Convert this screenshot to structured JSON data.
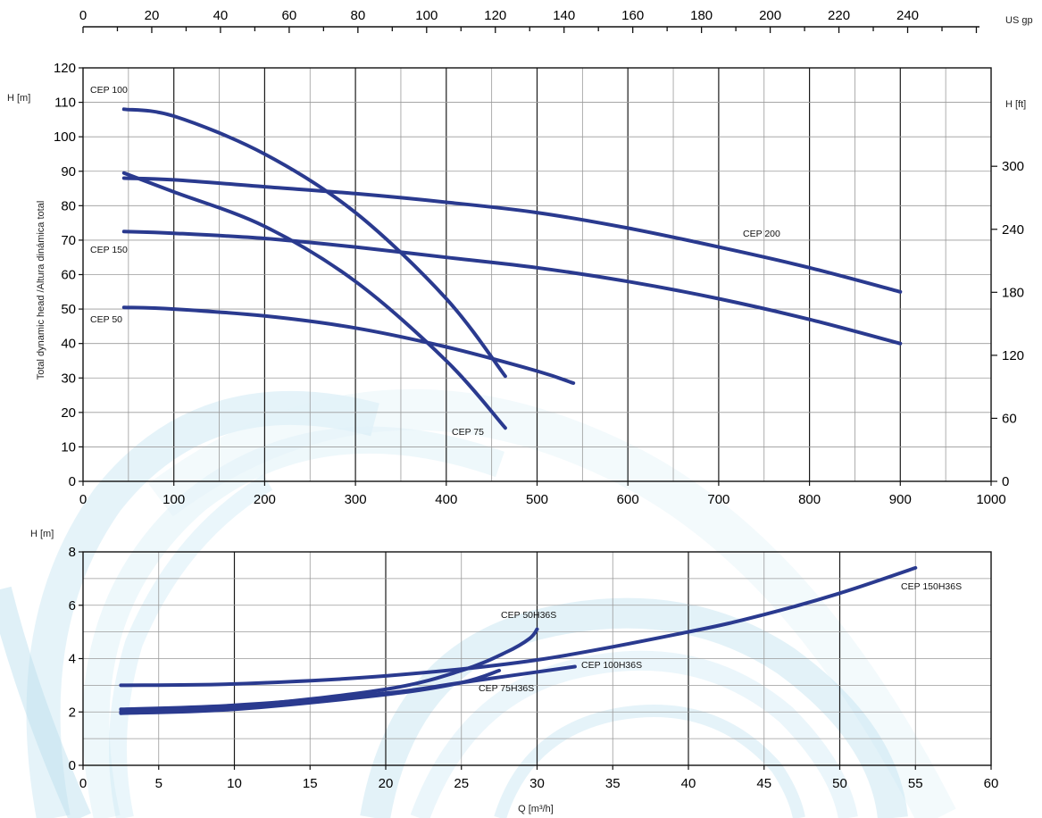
{
  "colors": {
    "curve": "#2a3a8f",
    "grid_major": "#1a1a1a",
    "grid_minor": "#9a9a9a",
    "watermark": "#5ab4d6"
  },
  "top_axis": {
    "ticks": [
      "0",
      "20",
      "40",
      "60",
      "80",
      "100",
      "120",
      "140",
      "160",
      "180",
      "200",
      "220",
      "240"
    ],
    "unit": "US gp"
  },
  "chart_data": [
    {
      "type": "line",
      "ylabel_left_unit": "H [m]",
      "ylabel_left": "Total dynamic head /Altura dinámica total",
      "ylabel_right_unit": "H [ft]",
      "xlim": [
        0,
        1000
      ],
      "ylim": [
        0,
        120
      ],
      "x_ticks": [
        "0",
        "100",
        "200",
        "300",
        "400",
        "500",
        "600",
        "700",
        "800",
        "900",
        "1000"
      ],
      "y_ticks": [
        "0",
        "10",
        "20",
        "30",
        "40",
        "50",
        "60",
        "70",
        "80",
        "90",
        "100",
        "110",
        "120"
      ],
      "y_right_ticks": [
        "0",
        "60",
        "120",
        "180",
        "240",
        "300"
      ],
      "grid": true,
      "series": [
        {
          "name": "CEP 100",
          "x": [
            45,
            100,
            200,
            300,
            400,
            465
          ],
          "y": [
            108,
            106,
            95,
            78,
            53,
            30.5
          ]
        },
        {
          "name": "CEP 75",
          "x": [
            45,
            100,
            200,
            300,
            400,
            465
          ],
          "y": [
            89.5,
            84,
            74,
            58,
            35,
            15.5
          ]
        },
        {
          "name": "CEP 200",
          "x": [
            45,
            100,
            200,
            300,
            400,
            500,
            600,
            700,
            800,
            900
          ],
          "y": [
            88,
            87.5,
            85.5,
            83.5,
            81,
            78,
            73.5,
            68,
            62,
            55
          ]
        },
        {
          "name": "CEP 150",
          "x": [
            45,
            100,
            200,
            300,
            400,
            500,
            600,
            700,
            800,
            900
          ],
          "y": [
            72.5,
            72,
            70.5,
            68,
            65,
            62,
            58,
            53,
            47,
            40
          ]
        },
        {
          "name": "CEP 50",
          "x": [
            45,
            100,
            200,
            300,
            400,
            500,
            540
          ],
          "y": [
            50.5,
            50,
            48,
            44.5,
            39,
            32,
            28.5
          ]
        }
      ]
    },
    {
      "type": "line",
      "ylabel_left_unit": "H [m]",
      "xlabel": "Q [m³/h]",
      "xlim": [
        0,
        60
      ],
      "ylim": [
        0,
        8
      ],
      "x_ticks": [
        "0",
        "5",
        "10",
        "15",
        "20",
        "25",
        "30",
        "35",
        "40",
        "45",
        "50",
        "55",
        "60"
      ],
      "y_ticks": [
        "0",
        "2",
        "4",
        "6",
        "8"
      ],
      "grid": true,
      "series": [
        {
          "name": "CEP 150H36S",
          "x": [
            2.5,
            10,
            20,
            30,
            40,
            45,
            50,
            55
          ],
          "y": [
            3,
            3.05,
            3.35,
            3.95,
            5,
            5.65,
            6.45,
            7.4
          ]
        },
        {
          "name": "CEP 50H36S",
          "x": [
            2.5,
            10,
            20,
            25,
            28,
            29.5,
            30
          ],
          "y": [
            2,
            2.2,
            2.85,
            3.55,
            4.25,
            4.75,
            5.1
          ]
        },
        {
          "name": "CEP 100H36S",
          "x": [
            2.5,
            10,
            20,
            25,
            32.5
          ],
          "y": [
            2.1,
            2.25,
            2.7,
            3.1,
            3.7
          ]
        },
        {
          "name": "CEP 75H36S",
          "x": [
            2.5,
            10,
            20,
            25,
            27.5
          ],
          "y": [
            1.95,
            2.1,
            2.65,
            3.1,
            3.55
          ]
        }
      ]
    }
  ]
}
